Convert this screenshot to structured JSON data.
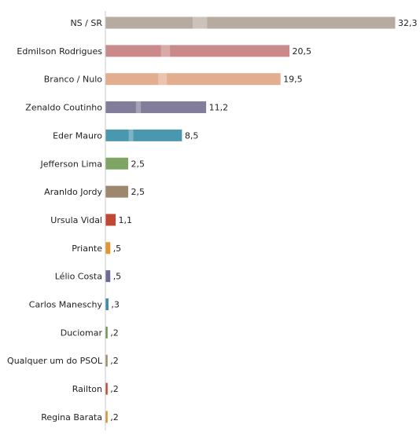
{
  "chart_data": {
    "type": "bar",
    "orientation": "horizontal",
    "title": "",
    "xlabel": "",
    "ylabel": "",
    "xlim": [
      0,
      32.3
    ],
    "grid": false,
    "legend": "none",
    "categories": [
      "NS / SR",
      "Edmilson Rodrigues",
      "Branco / Nulo",
      "Zenaldo Coutinho",
      "Eder Mauro",
      "Jefferson Lima",
      "Aranldo Jordy",
      "Ursula Vidal",
      "Priante",
      "Lélio Costa",
      "Carlos Maneschy",
      "Duciomar",
      "Qualquer um do PSOL",
      "Railton",
      "Regina Barata"
    ],
    "values": [
      32.3,
      20.5,
      19.5,
      11.2,
      8.5,
      2.5,
      2.5,
      1.1,
      0.5,
      0.5,
      0.3,
      0.2,
      0.2,
      0.2,
      0.2
    ],
    "value_labels": [
      "32,3",
      "20,5",
      "19,5",
      "11,2",
      "8,5",
      "2,5",
      "2,5",
      "1,1",
      ",5",
      ",5",
      ",3",
      ",2",
      ",2",
      ",2",
      ",2"
    ],
    "colors": [
      "#b7aba0",
      "#c98a89",
      "#e3ad90",
      "#837d9c",
      "#4a98ad",
      "#7fa565",
      "#9d886d",
      "#c24734",
      "#e0962c",
      "#6c6a96",
      "#3c8ca3",
      "#6f9457",
      "#a08a6a",
      "#c24734",
      "#d6932f"
    ]
  }
}
